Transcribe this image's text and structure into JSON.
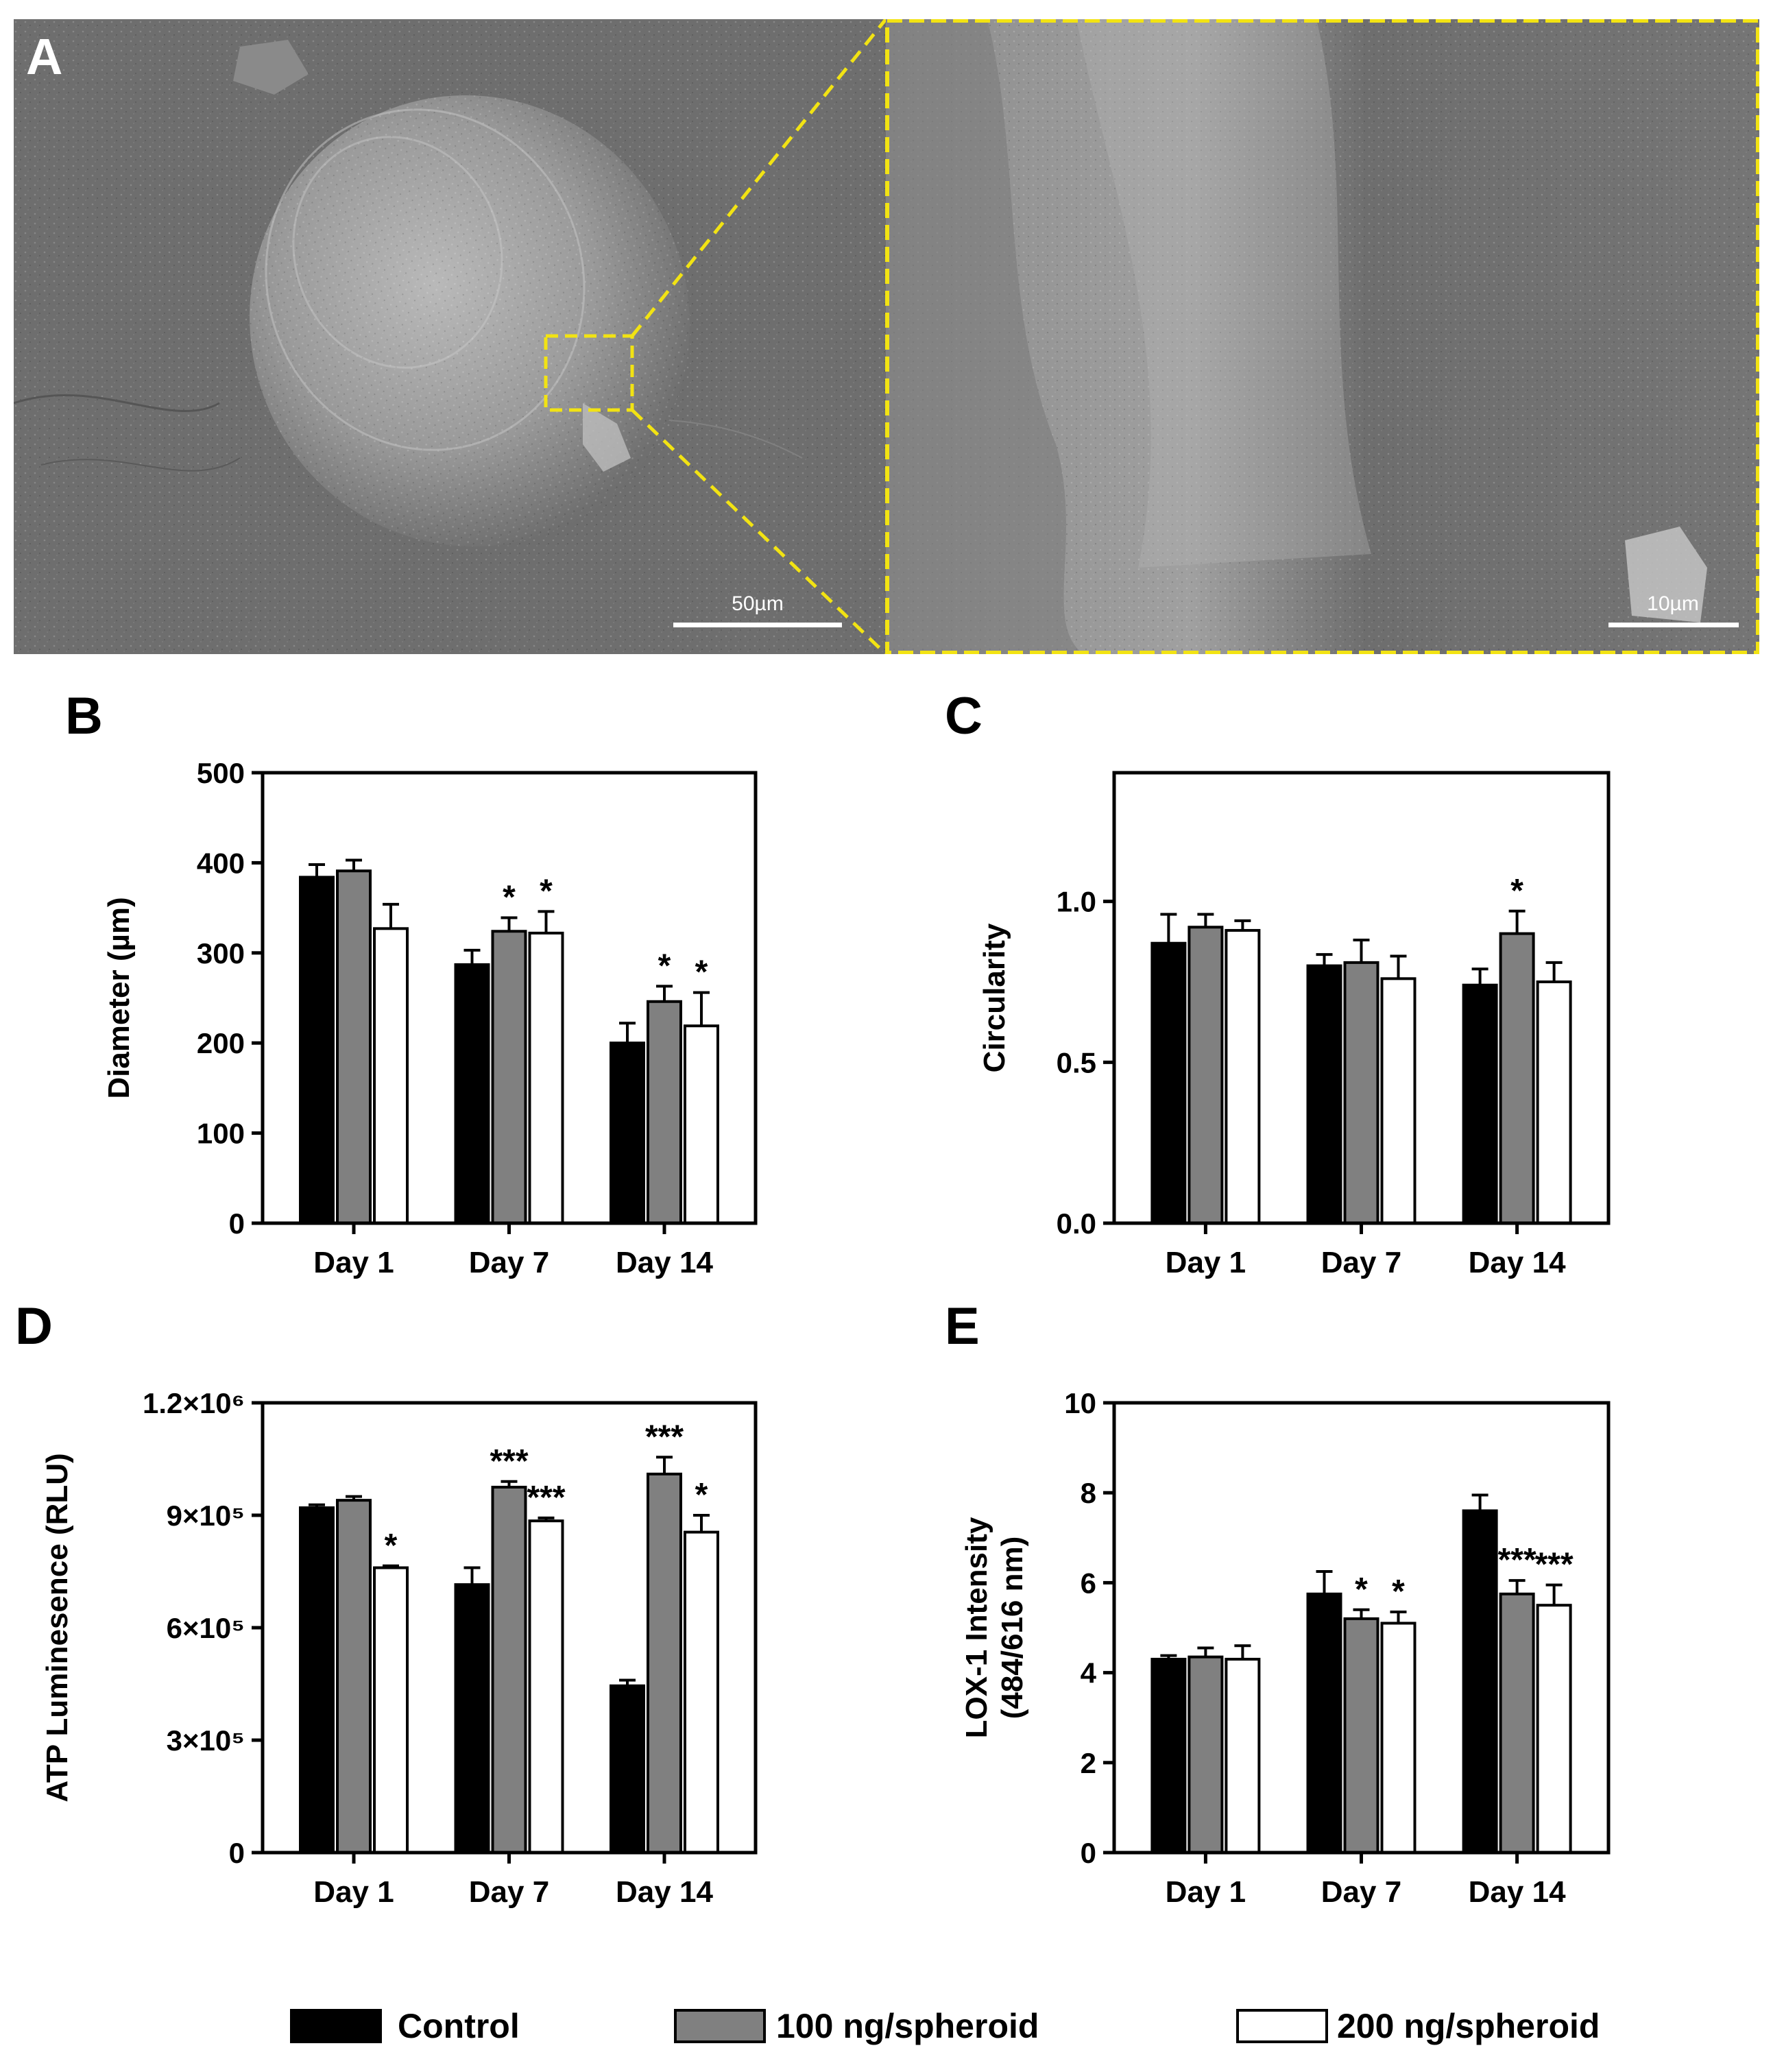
{
  "panel_a": {
    "letter": "A",
    "scale_left": "50µm",
    "scale_right": "10µm",
    "highlight_color": "#f2e313"
  },
  "legend": {
    "items": [
      {
        "label": "Control",
        "color": "#000000"
      },
      {
        "label": "100 ng/spheroid",
        "color": "#808080"
      },
      {
        "label": "200 ng/spheroid",
        "color": "#ffffff"
      }
    ]
  },
  "chart_data": [
    {
      "panel": "B",
      "type": "bar",
      "categories": [
        "Day 1",
        "Day 7",
        "Day 14"
      ],
      "ylabel": "Diameter (µm)",
      "ylim": [
        0,
        500
      ],
      "yticks": [
        0,
        100,
        200,
        300,
        400,
        500
      ],
      "ytick_labels": [
        "0",
        "100",
        "200",
        "300",
        "400",
        "500"
      ],
      "series": [
        {
          "name": "Control",
          "color": "#000000",
          "values": [
            384,
            287,
            200
          ],
          "errors": [
            14,
            16,
            22
          ],
          "sig": [
            "",
            "",
            ""
          ]
        },
        {
          "name": "100 ng/spheroid",
          "color": "#808080",
          "values": [
            391,
            324,
            246
          ],
          "errors": [
            12,
            15,
            17
          ],
          "sig": [
            "",
            "*",
            "*"
          ]
        },
        {
          "name": "200 ng/spheroid",
          "color": "#ffffff",
          "values": [
            327,
            322,
            219
          ],
          "errors": [
            27,
            24,
            37
          ],
          "sig": [
            "",
            "*",
            "*"
          ]
        }
      ]
    },
    {
      "panel": "C",
      "type": "bar",
      "categories": [
        "Day 1",
        "Day 7",
        "Day 14"
      ],
      "ylabel": "Circularity",
      "ylim": [
        0,
        1.4
      ],
      "yticks": [
        0,
        0.5,
        1.0
      ],
      "ytick_labels": [
        "0.0",
        "0.5",
        "1.0"
      ],
      "series": [
        {
          "name": "Control",
          "color": "#000000",
          "values": [
            0.87,
            0.8,
            0.74
          ],
          "errors": [
            0.09,
            0.035,
            0.05
          ],
          "sig": [
            "",
            "",
            ""
          ]
        },
        {
          "name": "100 ng/spheroid",
          "color": "#808080",
          "values": [
            0.92,
            0.81,
            0.9
          ],
          "errors": [
            0.04,
            0.07,
            0.07
          ],
          "sig": [
            "",
            "",
            "*"
          ]
        },
        {
          "name": "200 ng/spheroid",
          "color": "#ffffff",
          "values": [
            0.91,
            0.76,
            0.75
          ],
          "errors": [
            0.03,
            0.07,
            0.06
          ],
          "sig": [
            "",
            "",
            ""
          ]
        }
      ]
    },
    {
      "panel": "D",
      "type": "bar",
      "categories": [
        "Day 1",
        "Day 7",
        "Day 14"
      ],
      "ylabel": "ATP Luminesence (RLU)",
      "ylim": [
        0,
        1200000
      ],
      "yticks": [
        0,
        300000,
        600000,
        900000,
        1200000
      ],
      "ytick_labels": [
        "0",
        "3×10⁵",
        "6×10⁵",
        "9×10⁵",
        "1.2×10⁶"
      ],
      "series": [
        {
          "name": "Control",
          "color": "#000000",
          "values": [
            920000,
            715000,
            445000
          ],
          "errors": [
            8000,
            45000,
            15000
          ],
          "sig": [
            "",
            "",
            ""
          ]
        },
        {
          "name": "100 ng/spheroid",
          "color": "#808080",
          "values": [
            940000,
            975000,
            1010000
          ],
          "errors": [
            10000,
            15000,
            45000
          ],
          "sig": [
            "",
            "***",
            "***"
          ]
        },
        {
          "name": "200 ng/spheroid",
          "color": "#ffffff",
          "values": [
            760000,
            885000,
            855000
          ],
          "errors": [
            5000,
            8000,
            45000
          ],
          "sig": [
            "*",
            "***",
            "*"
          ]
        }
      ]
    },
    {
      "panel": "E",
      "type": "bar",
      "categories": [
        "Day 1",
        "Day 7",
        "Day 14"
      ],
      "ylabel": "LOX-1 Intensity (484/616 nm)",
      "ylabel_lines": [
        "LOX-1 Intensity",
        "(484/616 nm)"
      ],
      "ylim": [
        0,
        10
      ],
      "yticks": [
        0,
        2,
        4,
        6,
        8,
        10
      ],
      "ytick_labels": [
        "0",
        "2",
        "4",
        "6",
        "8",
        "10"
      ],
      "series": [
        {
          "name": "Control",
          "color": "#000000",
          "values": [
            4.3,
            5.75,
            7.6
          ],
          "errors": [
            0.08,
            0.5,
            0.35
          ],
          "sig": [
            "",
            "",
            ""
          ]
        },
        {
          "name": "100 ng/spheroid",
          "color": "#808080",
          "values": [
            4.35,
            5.2,
            5.75
          ],
          "errors": [
            0.2,
            0.2,
            0.3
          ],
          "sig": [
            "",
            "*",
            "***"
          ]
        },
        {
          "name": "200 ng/spheroid",
          "color": "#ffffff",
          "values": [
            4.3,
            5.1,
            5.5
          ],
          "errors": [
            0.3,
            0.25,
            0.45
          ],
          "sig": [
            "",
            "*",
            "***"
          ]
        }
      ]
    }
  ]
}
